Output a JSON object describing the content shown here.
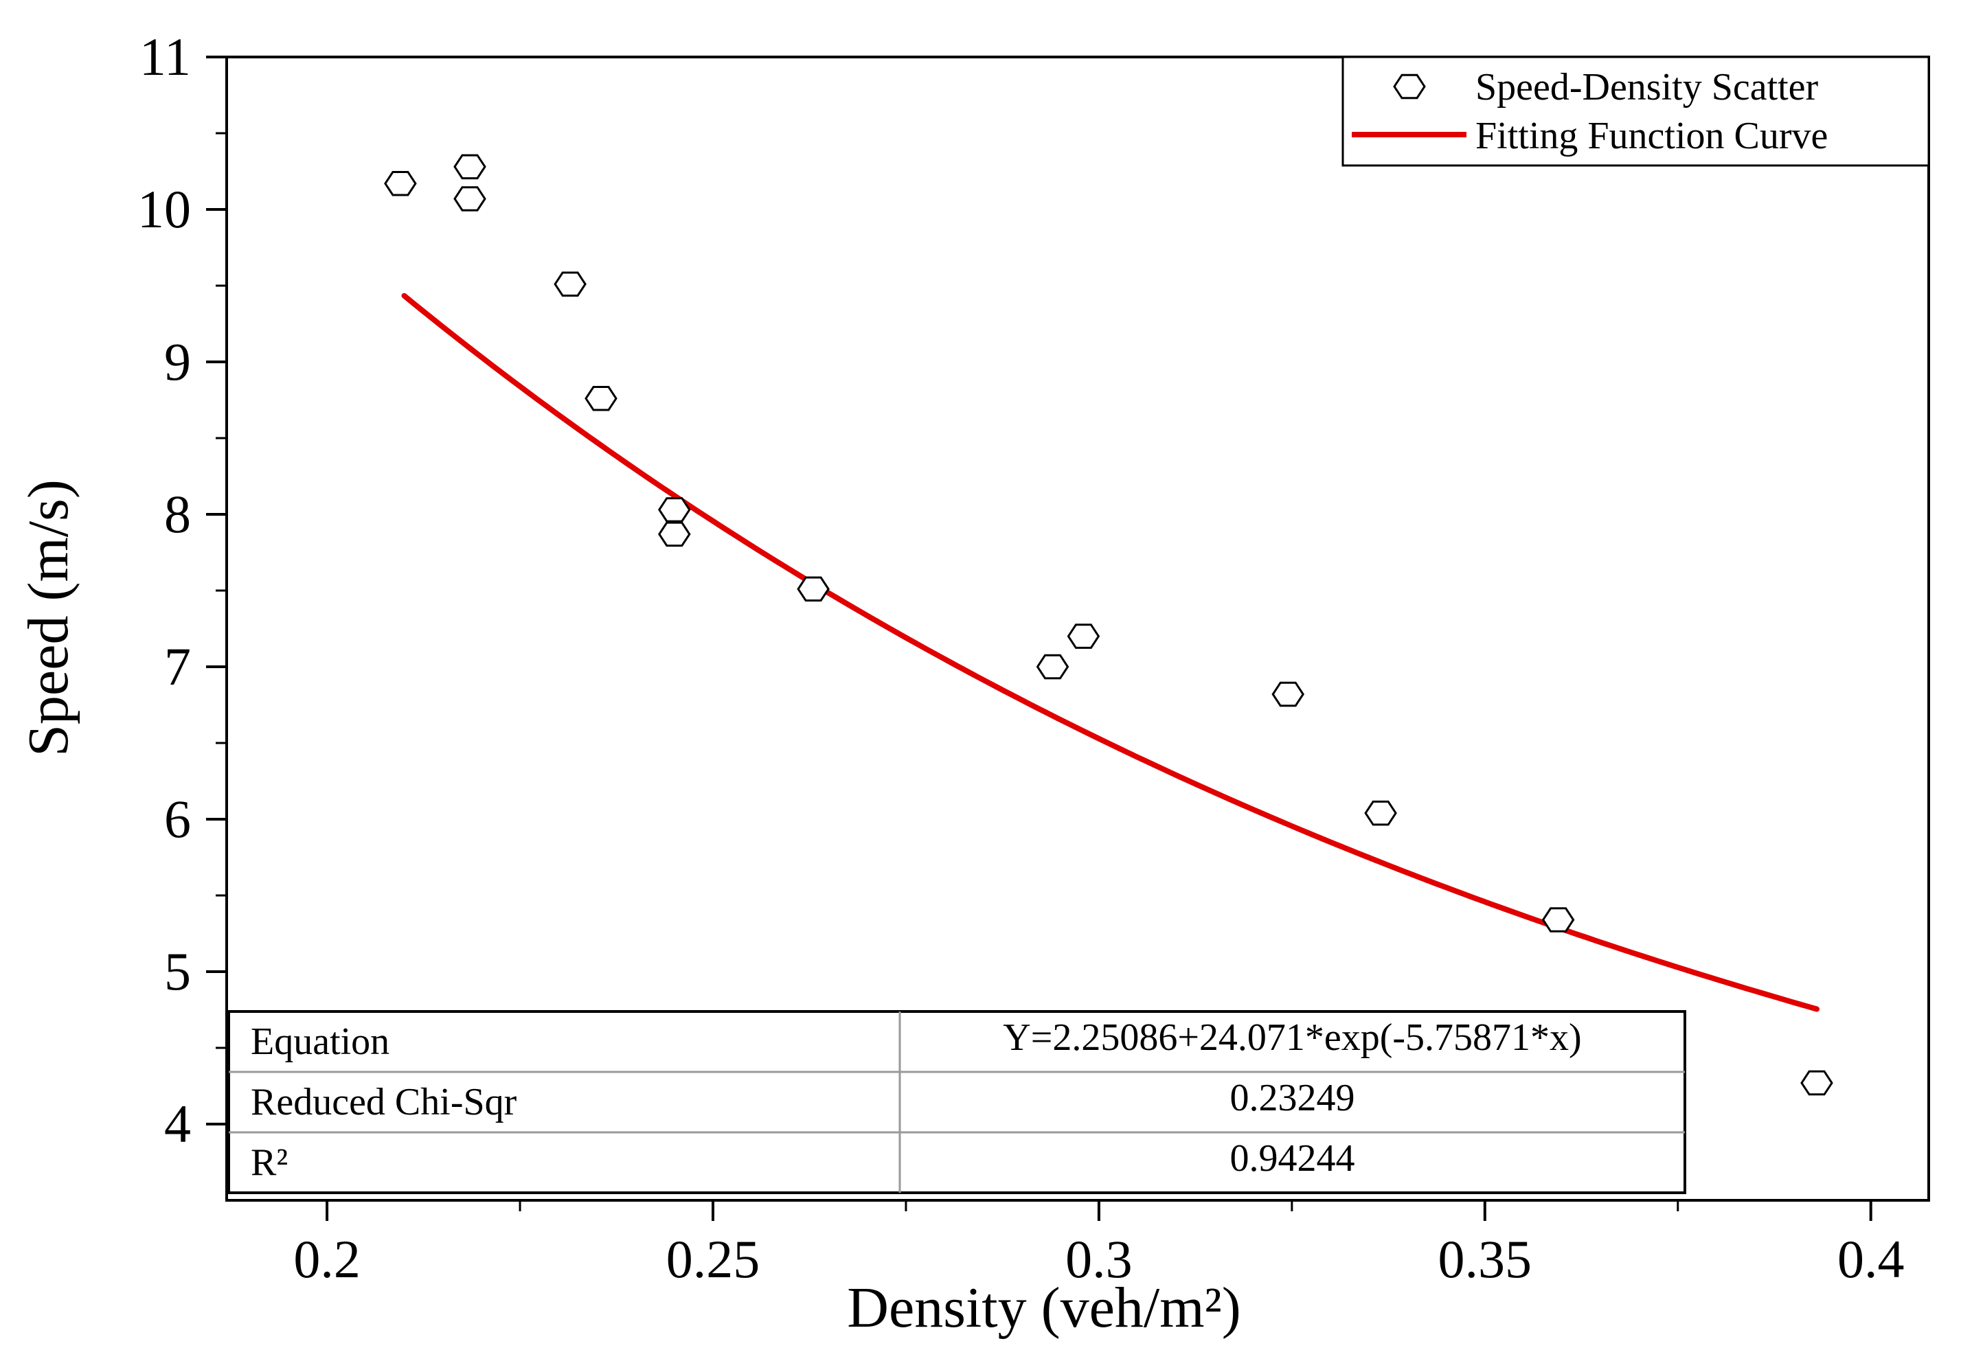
{
  "chart_data": {
    "type": "scatter",
    "xlabel": "Density (veh/m²)",
    "ylabel": "Speed (m/s)",
    "xlim": [
      0.187,
      0.4075
    ],
    "ylim": [
      3.5,
      11
    ],
    "x_ticks": [
      0.2,
      0.25,
      0.3,
      0.35,
      0.4
    ],
    "x_tick_labels": [
      "0.2",
      "0.25",
      "0.3",
      "0.35",
      "0.4"
    ],
    "y_ticks": [
      4,
      5,
      6,
      7,
      8,
      9,
      10,
      11
    ],
    "y_tick_labels": [
      "4",
      "5",
      "6",
      "7",
      "8",
      "9",
      "10",
      "11"
    ],
    "series": [
      {
        "name": "Speed-Density Scatter",
        "kind": "scatter",
        "marker": "hexagon",
        "points": [
          {
            "x": 0.2095,
            "y": 10.17
          },
          {
            "x": 0.2185,
            "y": 10.28
          },
          {
            "x": 0.2185,
            "y": 10.07
          },
          {
            "x": 0.2315,
            "y": 9.51
          },
          {
            "x": 0.2355,
            "y": 8.76
          },
          {
            "x": 0.245,
            "y": 8.03
          },
          {
            "x": 0.245,
            "y": 7.87
          },
          {
            "x": 0.263,
            "y": 7.51
          },
          {
            "x": 0.294,
            "y": 7.0
          },
          {
            "x": 0.298,
            "y": 7.2
          },
          {
            "x": 0.3245,
            "y": 6.82
          },
          {
            "x": 0.3365,
            "y": 6.04
          },
          {
            "x": 0.3595,
            "y": 5.34
          },
          {
            "x": 0.393,
            "y": 4.27
          }
        ]
      },
      {
        "name": "Fitting Function Curve",
        "kind": "line",
        "color": "#e00000",
        "equation": {
          "a": 2.25086,
          "b": 24.071,
          "c": -5.75871
        },
        "x_range": [
          0.21,
          0.393
        ]
      }
    ],
    "legend": {
      "position": "top-right",
      "entries": [
        "Speed-Density Scatter",
        "Fitting Function Curve"
      ]
    },
    "fit_table": {
      "position": "bottom-left",
      "rows": [
        {
          "label": "Equation",
          "value": "Y=2.25086+24.071*exp(-5.75871*x)"
        },
        {
          "label": "Reduced Chi-Sqr",
          "value": "0.23249"
        },
        {
          "label": "R²",
          "value": "0.94244"
        }
      ]
    }
  }
}
